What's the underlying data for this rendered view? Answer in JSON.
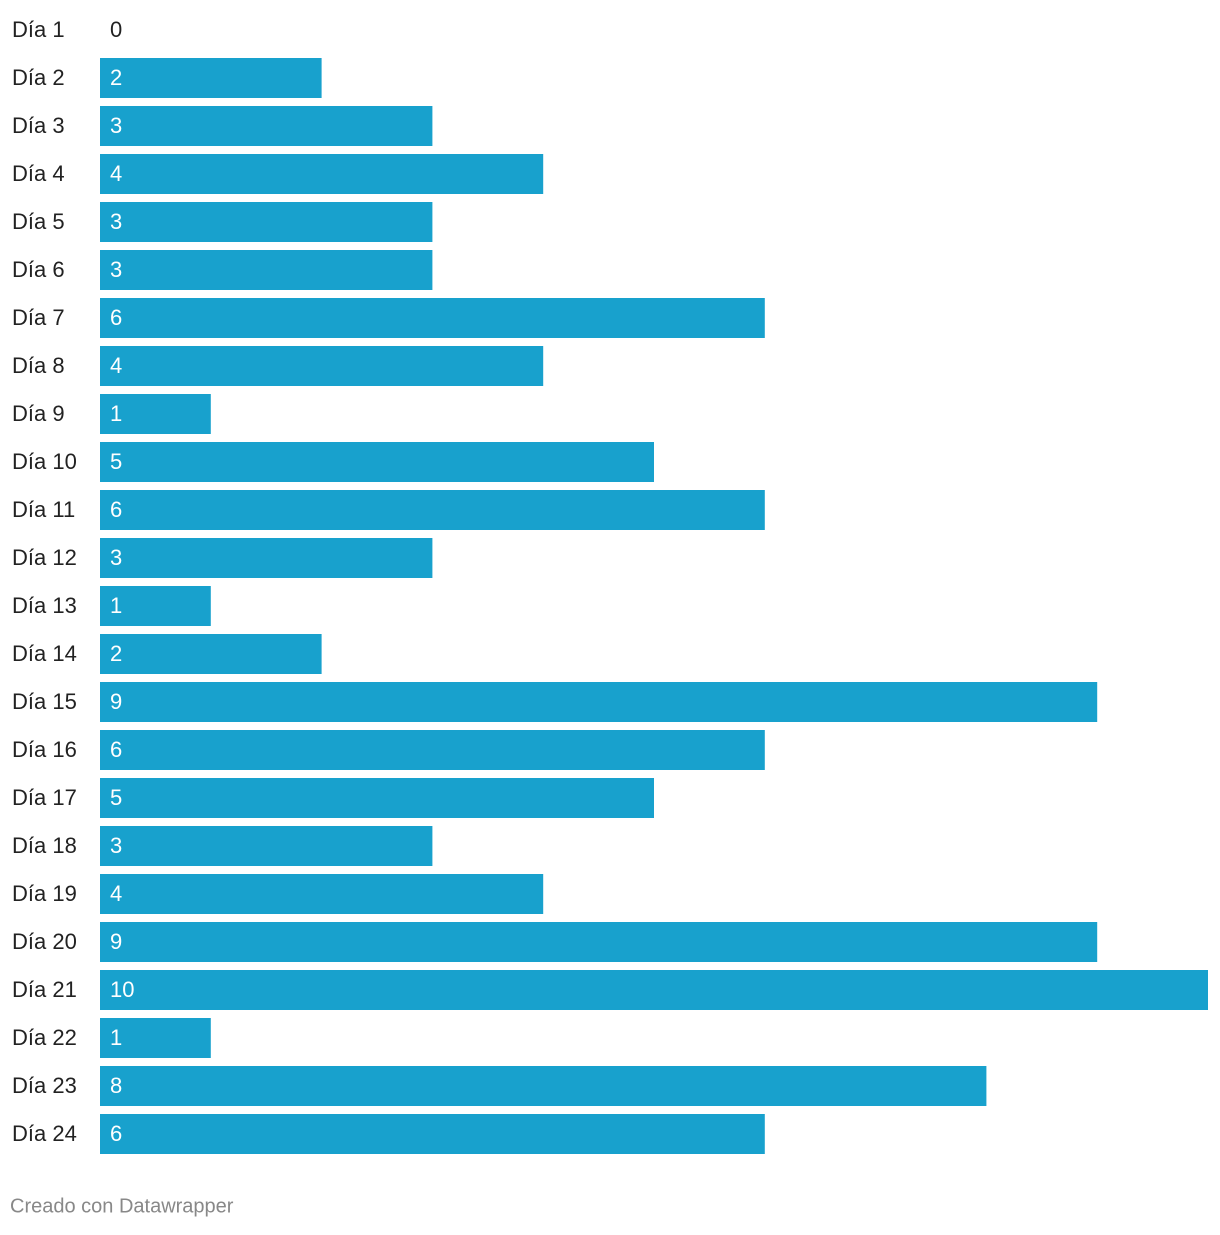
{
  "chart_data": {
    "type": "bar",
    "orientation": "horizontal",
    "categories": [
      "Día 1",
      "Día 2",
      "Día 3",
      "Día 4",
      "Día 5",
      "Día 6",
      "Día 7",
      "Día 8",
      "Día 9",
      "Día 10",
      "Día 11",
      "Día 12",
      "Día 13",
      "Día 14",
      "Día 15",
      "Día 16",
      "Día 17",
      "Día 18",
      "Día 19",
      "Día 20",
      "Día 21",
      "Día 22",
      "Día 23",
      "Día 24"
    ],
    "values": [
      0,
      2,
      3,
      4,
      3,
      3,
      6,
      4,
      1,
      5,
      6,
      3,
      1,
      2,
      9,
      6,
      5,
      3,
      4,
      9,
      10,
      1,
      8,
      6
    ],
    "color": "#18a1cd",
    "xlim": [
      0,
      10
    ],
    "footer": "Creado con Datawrapper"
  }
}
